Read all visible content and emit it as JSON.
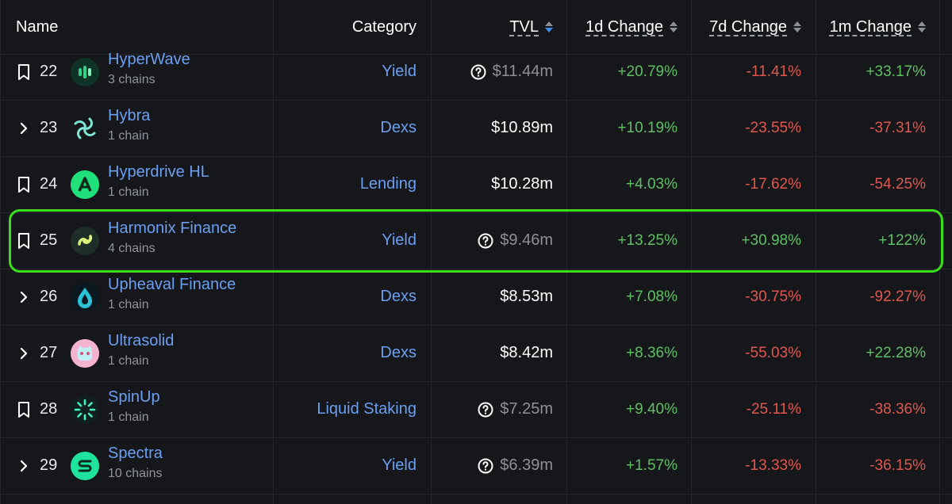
{
  "header": {
    "name": "Name",
    "category": "Category",
    "tvl": "TVL",
    "change_1d": "1d Change",
    "change_7d": "7d Change",
    "change_1m": "1m Change"
  },
  "colors": {
    "positive": "#5fbf64",
    "negative": "#e0574f",
    "link": "#6a9ff2",
    "highlight": "#39e01a"
  },
  "rows": [
    {
      "lead": "bookmark-icon",
      "rank": "22",
      "name": "HyperWave",
      "chains": "3 chains",
      "category": "Yield",
      "tvl": "$11.44m",
      "tvl_warning": true,
      "d1": "+20.79%",
      "d7": "-11.41%",
      "m1": "+33.17%"
    },
    {
      "lead": "chevron-right-icon",
      "rank": "23",
      "name": "Hybra",
      "chains": "1 chain",
      "category": "Dexs",
      "tvl": "$10.89m",
      "tvl_warning": false,
      "d1": "+10.19%",
      "d7": "-23.55%",
      "m1": "-37.31%"
    },
    {
      "lead": "bookmark-icon",
      "rank": "24",
      "name": "Hyperdrive HL",
      "chains": "1 chain",
      "category": "Lending",
      "tvl": "$10.28m",
      "tvl_warning": false,
      "d1": "+4.03%",
      "d7": "-17.62%",
      "m1": "-54.25%"
    },
    {
      "lead": "bookmark-icon",
      "rank": "25",
      "name": "Harmonix Finance",
      "chains": "4 chains",
      "category": "Yield",
      "tvl": "$9.46m",
      "tvl_warning": true,
      "d1": "+13.25%",
      "d7": "+30.98%",
      "m1": "+122%"
    },
    {
      "lead": "chevron-right-icon",
      "rank": "26",
      "name": "Upheaval Finance",
      "chains": "1 chain",
      "category": "Dexs",
      "tvl": "$8.53m",
      "tvl_warning": false,
      "d1": "+7.08%",
      "d7": "-30.75%",
      "m1": "-92.27%"
    },
    {
      "lead": "chevron-right-icon",
      "rank": "27",
      "name": "Ultrasolid",
      "chains": "1 chain",
      "category": "Dexs",
      "tvl": "$8.42m",
      "tvl_warning": false,
      "d1": "+8.36%",
      "d7": "-55.03%",
      "m1": "+22.28%"
    },
    {
      "lead": "bookmark-icon",
      "rank": "28",
      "name": "SpinUp",
      "chains": "1 chain",
      "category": "Liquid Staking",
      "tvl": "$7.25m",
      "tvl_warning": true,
      "d1": "+9.40%",
      "d7": "-25.11%",
      "m1": "-38.36%"
    },
    {
      "lead": "chevron-right-icon",
      "rank": "29",
      "name": "Spectra",
      "chains": "10 chains",
      "category": "Yield",
      "tvl": "$6.39m",
      "tvl_warning": true,
      "d1": "+1.57%",
      "d7": "-13.33%",
      "m1": "-36.15%"
    }
  ]
}
